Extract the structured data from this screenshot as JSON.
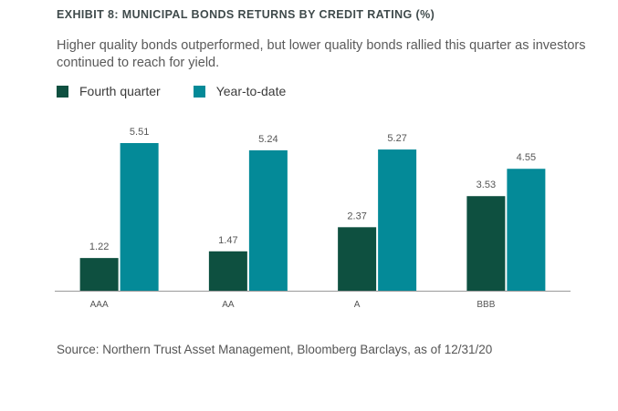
{
  "title": "EXHIBIT 8: MUNICIPAL BONDS RETURNS BY CREDIT RATING (%)",
  "subtitle": "Higher quality bonds outperformed, but lower quality bonds rallied this quarter as investors continued to reach for yield.",
  "legend": {
    "q4_label": "Fourth quarter",
    "ytd_label": "Year-to-date"
  },
  "colors": {
    "q4": "#0e5040",
    "ytd": "#048a98",
    "axis": "#9a9a9a"
  },
  "source": "Source: Northern Trust Asset Management, Bloomberg Barclays, as of 12/31/20",
  "chart_data": {
    "type": "bar",
    "categories": [
      "AAA",
      "AA",
      "A",
      "BBB"
    ],
    "series": [
      {
        "name": "Fourth quarter",
        "values": [
          1.22,
          1.47,
          2.37,
          3.53
        ]
      },
      {
        "name": "Year-to-date",
        "values": [
          5.51,
          5.24,
          5.27,
          4.55
        ]
      }
    ],
    "title": "EXHIBIT 8: MUNICIPAL BONDS RETURNS BY CREDIT RATING (%)",
    "xlabel": "",
    "ylabel": "",
    "ylim": [
      0,
      6
    ],
    "grid": false,
    "legend_position": "top-left",
    "data_labels": true
  }
}
